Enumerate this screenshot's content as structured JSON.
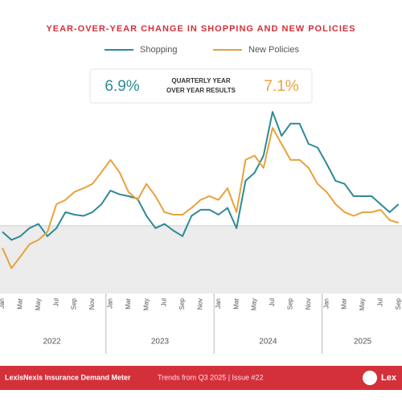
{
  "chart_data": {
    "type": "line",
    "title": "YEAR-OVER-YEAR CHANGE IN SHOPPING AND NEW POLICIES",
    "stats": {
      "shopping": "6.9%",
      "label_lines": [
        "QUARTERLY YEAR",
        "OVER YEAR RESULTS"
      ],
      "policies": "7.1%"
    },
    "categories": [
      "Jan",
      null,
      "Mar",
      null,
      "May",
      null,
      "Jul",
      null,
      "Sep",
      null,
      "Nov",
      null,
      "Jan",
      null,
      "Mar",
      null,
      "May",
      null,
      "Jul",
      null,
      "Sep",
      null,
      "Nov",
      null,
      "Jan",
      null,
      "Mar",
      null,
      "May",
      null,
      "Jul",
      null,
      "Sep",
      null,
      "Nov",
      null,
      "Jan",
      null,
      "Mar",
      null,
      "May",
      null,
      "Jul",
      null,
      "Sep"
    ],
    "years": [
      "2022",
      "2023",
      "2024",
      "2025"
    ],
    "series": [
      {
        "name": "Shopping",
        "color": "#2e8a95",
        "values": [
          -1.0,
          -2.3,
          -1.7,
          -0.4,
          0.3,
          -1.7,
          -0.4,
          2.2,
          1.8,
          1.6,
          2.2,
          3.5,
          5.7,
          5.1,
          4.8,
          4.4,
          1.6,
          -0.4,
          0.3,
          -0.8,
          -1.7,
          1.6,
          2.6,
          2.6,
          1.8,
          2.9,
          -0.4,
          7.3,
          8.6,
          11.4,
          18.5,
          14.6,
          16.6,
          16.6,
          13.3,
          12.7,
          10.1,
          7.3,
          6.8,
          4.8,
          4.8,
          4.8,
          3.5,
          2.2,
          3.5
        ]
      },
      {
        "name": "New Policies",
        "color": "#e8a23d",
        "values": [
          -3.6,
          -6.9,
          -5.0,
          -3.0,
          -2.3,
          -1.0,
          3.5,
          4.2,
          5.5,
          6.1,
          6.8,
          8.7,
          10.7,
          8.7,
          5.5,
          4.2,
          6.8,
          4.8,
          2.2,
          1.8,
          1.8,
          2.9,
          4.2,
          4.8,
          4.2,
          6.1,
          2.2,
          10.7,
          11.4,
          9.4,
          15.9,
          13.3,
          10.7,
          10.7,
          9.4,
          6.8,
          5.5,
          3.5,
          2.2,
          1.6,
          2.2,
          2.2,
          2.6,
          0.9,
          0.5
        ]
      }
    ],
    "ylim": [
      -11,
      21
    ],
    "footer": {
      "brand": "LexisNexis Insurance Demand Meter",
      "detail": "Trends from Q3 2025 | Issue #22",
      "logo": "Lex"
    }
  }
}
